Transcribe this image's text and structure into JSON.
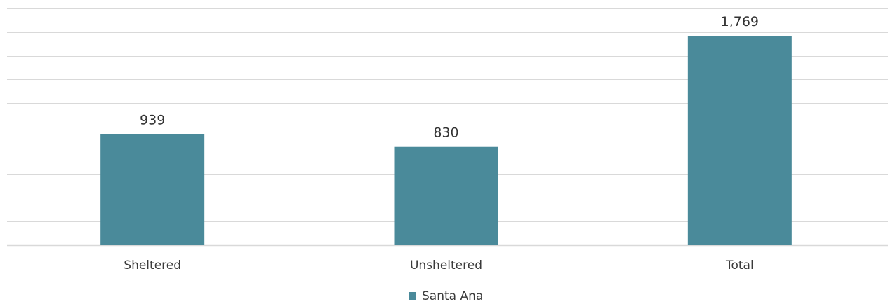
{
  "chart_data": {
    "type": "bar",
    "categories": [
      "Sheltered",
      "Unsheltered",
      "Total"
    ],
    "series": [
      {
        "name": "Santa Ana",
        "values": [
          939,
          830,
          1769
        ],
        "color": "#4a8a9a"
      }
    ],
    "data_labels": [
      "939",
      "830",
      "1,769"
    ],
    "ylim": [
      0,
      2000
    ],
    "grid": true,
    "legend": "bottom-center",
    "title": "",
    "xlabel": "",
    "ylabel": ""
  }
}
